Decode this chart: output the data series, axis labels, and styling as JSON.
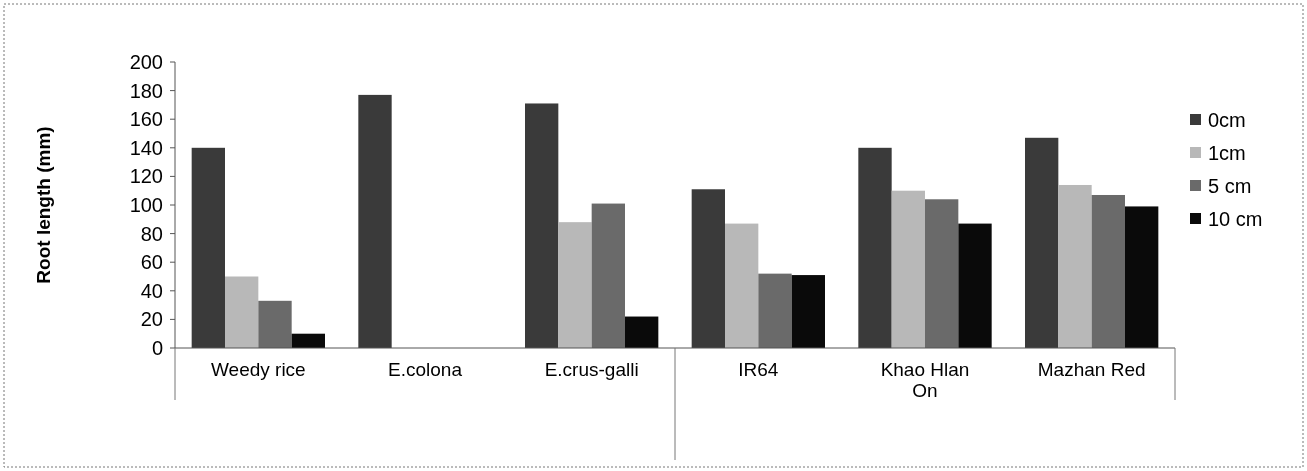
{
  "chart_data": {
    "type": "bar",
    "ylabel": "Root length (mm)",
    "categories": [
      "Weedy rice",
      "E.colona",
      "E.crus-galli",
      "IR64",
      "Khao Hlan On",
      "Mazhan Red"
    ],
    "series": [
      {
        "name": "0cm",
        "color": "#3a3a3a",
        "values": [
          140,
          177,
          171,
          111,
          140,
          147
        ]
      },
      {
        "name": "1cm",
        "color": "#b8b8b8",
        "values": [
          50,
          null,
          88,
          87,
          110,
          114
        ]
      },
      {
        "name": "5 cm",
        "color": "#6a6a6a",
        "values": [
          33,
          null,
          101,
          52,
          104,
          107
        ]
      },
      {
        "name": "10 cm",
        "color": "#0a0a0a",
        "values": [
          10,
          null,
          22,
          51,
          87,
          99
        ]
      }
    ],
    "ylim": [
      0,
      200
    ],
    "yticks": [
      0,
      20,
      40,
      60,
      80,
      100,
      120,
      140,
      160,
      180,
      200
    ],
    "legend": "right",
    "grid": false
  }
}
